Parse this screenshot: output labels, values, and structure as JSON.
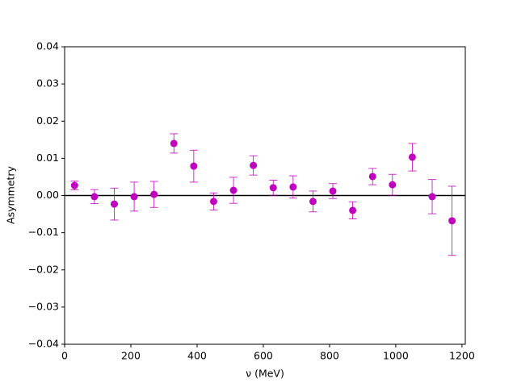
{
  "chart_data": {
    "type": "errorbar",
    "xlabel": "ν (MeV)",
    "ylabel": "Asymmetry",
    "x": [
      30,
      90,
      150,
      210,
      270,
      330,
      390,
      450,
      510,
      570,
      630,
      690,
      750,
      810,
      870,
      930,
      990,
      1050,
      1110,
      1170
    ],
    "series": [
      {
        "color": "#bf00bf",
        "values": [
          0.0027,
          -0.0003,
          -0.0023,
          -0.0003,
          0.0003,
          0.014,
          0.0079,
          -0.0016,
          0.0014,
          0.0081,
          0.0021,
          0.0023,
          -0.0016,
          0.0012,
          -0.004,
          0.0051,
          0.0029,
          0.0103,
          -0.0003,
          -0.0068
        ],
        "errors": [
          0.0012,
          0.0019,
          0.0043,
          0.0039,
          0.0035,
          0.0026,
          0.0043,
          0.0023,
          0.0035,
          0.0026,
          0.002,
          0.003,
          0.0028,
          0.002,
          0.0023,
          0.0022,
          0.0028,
          0.0037,
          0.0046,
          0.0093
        ]
      }
    ],
    "reference_line": 0,
    "xlim": [
      0,
      1210
    ],
    "xticks": [
      0,
      200,
      400,
      600,
      800,
      1000,
      1200
    ],
    "ylim": [
      -0.04,
      0.04
    ],
    "yticks": [
      {
        "value": -0.04,
        "label": "−0.04"
      },
      {
        "value": -0.03,
        "label": "−0.03"
      },
      {
        "value": -0.02,
        "label": "−0.02"
      },
      {
        "value": -0.01,
        "label": "−0.01"
      },
      {
        "value": 0,
        "label": "0.00"
      },
      {
        "value": 0.01,
        "label": "0.01"
      },
      {
        "value": 0.02,
        "label": "0.02"
      },
      {
        "value": 0.03,
        "label": "0.03"
      },
      {
        "value": 0.04,
        "label": "0.04"
      }
    ]
  }
}
